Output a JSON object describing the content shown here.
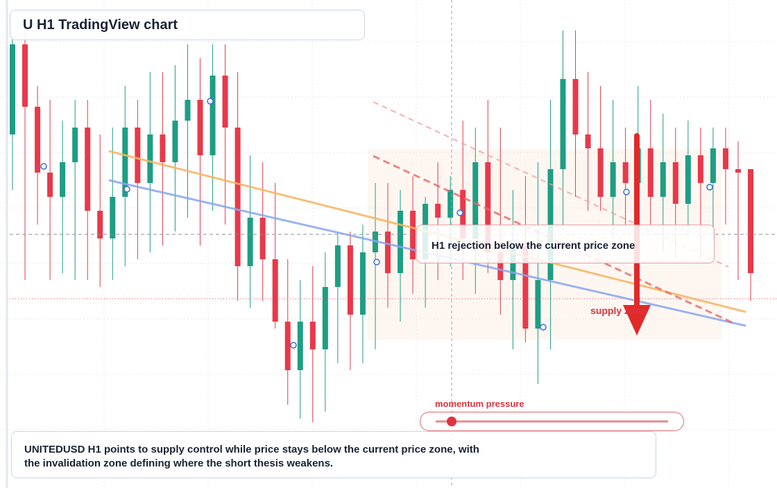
{
  "header": {
    "title": "U H1 TradingView chart"
  },
  "chart": {
    "ylim": [
      0,
      704
    ],
    "candles": [
      [
        510,
        650,
        430,
        640
      ],
      [
        640,
        660,
        300,
        550
      ],
      [
        550,
        580,
        380,
        455
      ],
      [
        455,
        560,
        300,
        420
      ],
      [
        420,
        530,
        310,
        470
      ],
      [
        470,
        560,
        300,
        520
      ],
      [
        520,
        560,
        300,
        400
      ],
      [
        400,
        510,
        290,
        360
      ],
      [
        360,
        520,
        300,
        420
      ],
      [
        420,
        580,
        320,
        520
      ],
      [
        520,
        560,
        330,
        440
      ],
      [
        440,
        600,
        340,
        510
      ],
      [
        510,
        600,
        350,
        470
      ],
      [
        470,
        610,
        370,
        530
      ],
      [
        530,
        640,
        390,
        560
      ],
      [
        560,
        620,
        350,
        480
      ],
      [
        480,
        640,
        400,
        595
      ],
      [
        595,
        640,
        380,
        520
      ],
      [
        520,
        600,
        270,
        320
      ],
      [
        320,
        480,
        260,
        390
      ],
      [
        390,
        470,
        270,
        330
      ],
      [
        330,
        440,
        230,
        240
      ],
      [
        240,
        330,
        120,
        170
      ],
      [
        170,
        300,
        100,
        240
      ],
      [
        240,
        320,
        95,
        200
      ],
      [
        200,
        340,
        110,
        290
      ],
      [
        290,
        370,
        180,
        350
      ],
      [
        350,
        370,
        170,
        250
      ],
      [
        250,
        380,
        180,
        340
      ],
      [
        340,
        440,
        200,
        370
      ],
      [
        370,
        440,
        260,
        310
      ],
      [
        310,
        430,
        240,
        400
      ],
      [
        400,
        450,
        280,
        330
      ],
      [
        330,
        420,
        260,
        410
      ],
      [
        410,
        470,
        300,
        390
      ],
      [
        390,
        450,
        320,
        430
      ],
      [
        430,
        530,
        300,
        360
      ],
      [
        360,
        520,
        280,
        470
      ],
      [
        470,
        560,
        310,
        340
      ],
      [
        340,
        520,
        250,
        300
      ],
      [
        300,
        430,
        200,
        350
      ],
      [
        350,
        450,
        210,
        230
      ],
      [
        230,
        470,
        150,
        300
      ],
      [
        300,
        560,
        200,
        460
      ],
      [
        460,
        660,
        380,
        590
      ],
      [
        590,
        660,
        420,
        510
      ],
      [
        510,
        600,
        400,
        490
      ],
      [
        490,
        580,
        400,
        420
      ],
      [
        420,
        560,
        360,
        470
      ],
      [
        470,
        520,
        380,
        440
      ],
      [
        440,
        580,
        340,
        490
      ],
      [
        490,
        560,
        380,
        420
      ],
      [
        420,
        540,
        340,
        470
      ],
      [
        470,
        520,
        330,
        410
      ],
      [
        410,
        530,
        360,
        480
      ],
      [
        480,
        520,
        330,
        440
      ],
      [
        440,
        520,
        360,
        490
      ],
      [
        490,
        520,
        380,
        460
      ],
      [
        460,
        500,
        300,
        455
      ],
      [
        460,
        460,
        270,
        310
      ]
    ],
    "up_color": "#1e9e84",
    "down_color": "#e8394a"
  },
  "callout": "H1 rejection below the current price zone",
  "zone_label": "supply zone",
  "momentum_label": "momentum pressure",
  "summary": [
    "UNITEDUSD H1 points to supply control while price stays below the current price zone, with",
    "the invalidation zone defining where the short thesis weakens."
  ]
}
